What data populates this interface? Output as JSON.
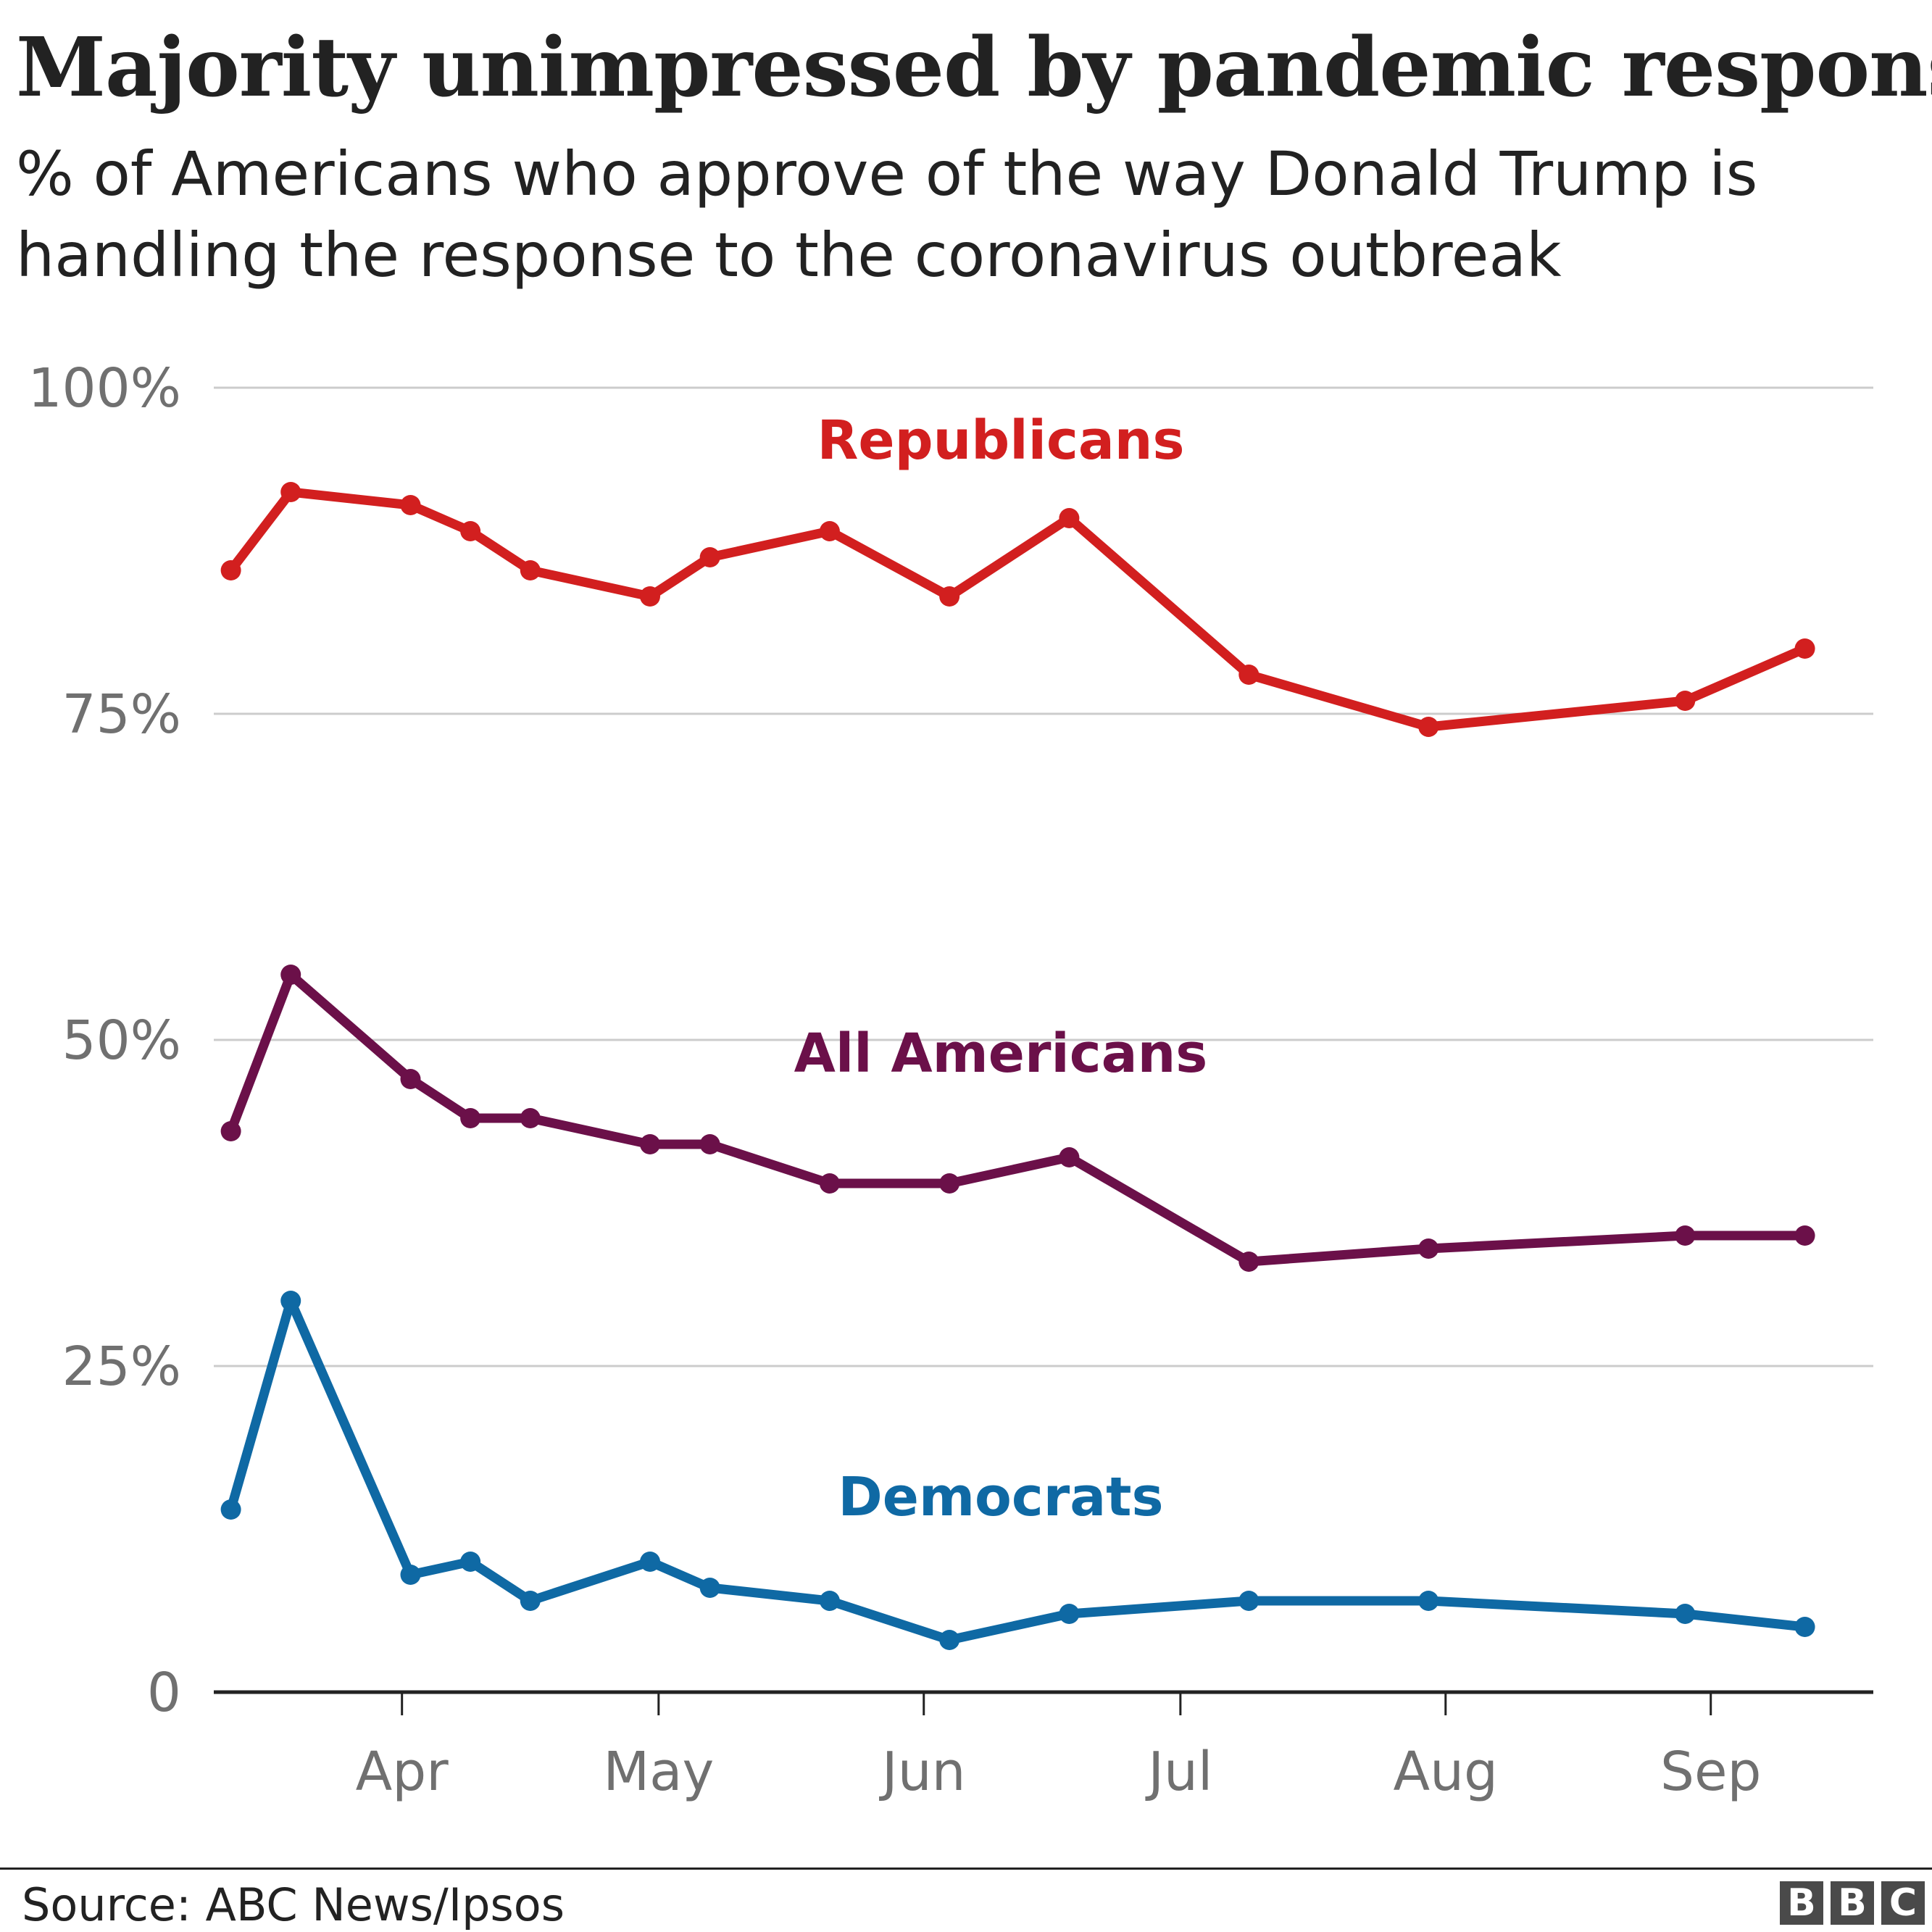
{
  "title": "Majority unimpressed by pandemic response",
  "subtitle": "% of Americans who approve of the way Donald Trump is handling the response to the coronavirus outbreak",
  "source": "Source: ABC News/Ipsos",
  "logo": [
    "B",
    "B",
    "C"
  ],
  "chart_data": {
    "type": "line",
    "title": "Majority unimpressed by pandemic response",
    "ylabel": "",
    "xlabel": "",
    "ylim": [
      0,
      100
    ],
    "yticks": [
      {
        "value": 0,
        "label": "0"
      },
      {
        "value": 25,
        "label": "25%"
      },
      {
        "value": 50,
        "label": "50%"
      },
      {
        "value": 75,
        "label": "75%"
      },
      {
        "value": 100,
        "label": "100%"
      }
    ],
    "xlim": [
      -22,
      172
    ],
    "xticks": [
      {
        "value": 0,
        "label": "Apr"
      },
      {
        "value": 30,
        "label": "May"
      },
      {
        "value": 61,
        "label": "Jun"
      },
      {
        "value": 91,
        "label": "Jul"
      },
      {
        "value": 122,
        "label": "Aug"
      },
      {
        "value": 153,
        "label": "Sep"
      }
    ],
    "x_unit": "days since 1 April",
    "x": [
      -20,
      -13,
      1,
      8,
      15,
      29,
      36,
      50,
      64,
      78,
      99,
      120,
      150,
      164
    ],
    "colors": {
      "Republicans": "#d21f1f",
      "All Americans": "#6b1049",
      "Democrats": "#0f69a4"
    },
    "series": [
      {
        "name": "Republicans",
        "label_day": 70,
        "label_value": 96,
        "x": [
          -20,
          -13,
          1,
          8,
          15,
          29,
          36,
          50,
          64,
          78,
          99,
          120,
          150,
          164
        ],
        "values": [
          86,
          92,
          91,
          89,
          86,
          84,
          87,
          89,
          84,
          90,
          78,
          74,
          76,
          80
        ]
      },
      {
        "name": "All Americans",
        "label_day": 70,
        "label_value": 49,
        "x": [
          -20,
          -13,
          1,
          8,
          15,
          29,
          36,
          50,
          64,
          78,
          99,
          120,
          150,
          164
        ],
        "values": [
          43,
          55,
          47,
          44,
          44,
          42,
          42,
          39,
          39,
          41,
          33,
          34,
          35,
          35
        ]
      },
      {
        "name": "Democrats",
        "label_day": 70,
        "label_value": 15,
        "x": [
          -20,
          -13,
          1,
          8,
          15,
          29,
          36,
          50,
          64,
          78,
          99,
          120,
          150,
          164
        ],
        "values": [
          14,
          30,
          9,
          10,
          7,
          10,
          8,
          7,
          4,
          6,
          7,
          7,
          6,
          5
        ]
      }
    ]
  }
}
